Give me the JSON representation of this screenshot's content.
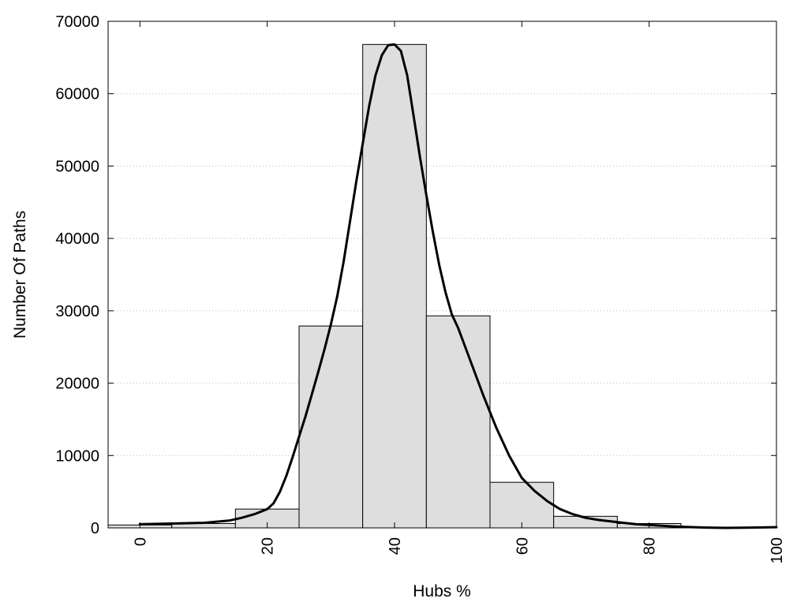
{
  "chart_data": {
    "type": "bar",
    "xlabel": "Hubs %",
    "ylabel": "Number Of Paths",
    "xlim": [
      -5,
      100
    ],
    "ylim": [
      0,
      70000
    ],
    "x_ticks": [
      0,
      20,
      40,
      60,
      80,
      100
    ],
    "y_ticks": [
      0,
      10000,
      20000,
      30000,
      40000,
      50000,
      60000,
      70000
    ],
    "grid": true,
    "bar_width": 10,
    "bars": [
      {
        "x": 0,
        "value": 400
      },
      {
        "x": 10,
        "value": 600
      },
      {
        "x": 20,
        "value": 2600
      },
      {
        "x": 30,
        "value": 27900
      },
      {
        "x": 40,
        "value": 66800
      },
      {
        "x": 50,
        "value": 29300
      },
      {
        "x": 60,
        "value": 6300
      },
      {
        "x": 70,
        "value": 1600
      },
      {
        "x": 80,
        "value": 600
      },
      {
        "x": 90,
        "value": 0
      },
      {
        "x": 100,
        "value": 0
      }
    ],
    "curve": {
      "x": [
        0,
        5,
        10,
        14,
        16,
        18,
        20,
        21,
        22,
        23,
        24,
        25,
        26,
        27,
        28,
        29,
        30,
        31,
        32,
        33,
        34,
        35,
        36,
        37,
        38,
        39,
        40,
        41,
        42,
        43,
        44,
        45,
        46,
        47,
        48,
        49,
        50,
        52,
        54,
        56,
        58,
        60,
        62,
        64,
        66,
        68,
        70,
        72,
        74,
        76,
        78,
        80,
        82,
        84,
        86,
        88,
        90,
        92,
        95,
        98,
        100
      ],
      "y": [
        500,
        600,
        700,
        1000,
        1400,
        1900,
        2600,
        3400,
        5000,
        7200,
        9800,
        12600,
        15400,
        18400,
        21500,
        24700,
        28100,
        32000,
        36800,
        42300,
        47900,
        53100,
        58200,
        62500,
        65300,
        66700,
        66800,
        65900,
        62500,
        56900,
        51200,
        46000,
        41000,
        36400,
        32600,
        29500,
        27600,
        22900,
        18200,
        13800,
        10000,
        6900,
        5100,
        3700,
        2600,
        1900,
        1400,
        1100,
        900,
        700,
        500,
        400,
        300,
        200,
        120,
        60,
        20,
        0,
        20,
        60,
        100
      ]
    },
    "colors": {
      "bar_fill": "#dedede",
      "bar_stroke": "#000000",
      "curve": "#000000",
      "grid": "#bbbbbb"
    }
  }
}
